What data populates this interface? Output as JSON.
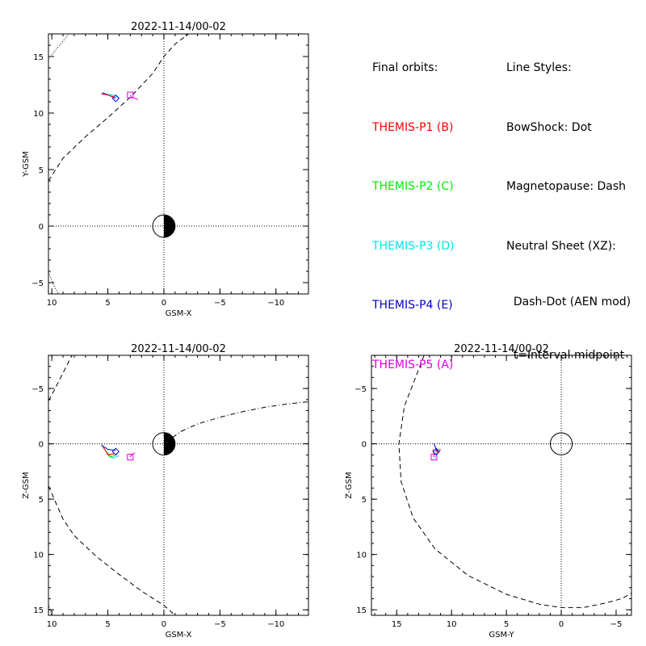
{
  "colors": {
    "P1": "#ff0000",
    "P2": "#00ee00",
    "P3": "#00e5e5",
    "P4": "#0000cc",
    "P5": "#e000e0",
    "lines": "#000000"
  },
  "legend": {
    "orbits_title": "Final orbits:",
    "orbits": [
      {
        "label": "THEMIS-P1 (B)",
        "color": "#ff0000"
      },
      {
        "label": "THEMIS-P2 (C)",
        "color": "#00ee00"
      },
      {
        "label": "THEMIS-P3 (D)",
        "color": "#00e5e5"
      },
      {
        "label": "THEMIS-P4 (E)",
        "color": "#0000cc"
      },
      {
        "label": "THEMIS-P5 (A)",
        "color": "#e000e0"
      }
    ],
    "styles_title": "Line Styles:",
    "styles": [
      "BowShock: Dot",
      "Magnetopause: Dash",
      "Neutral Sheet (XZ):"
    ],
    "styles_sub": [
      "  Dash-Dot (AEN mod)",
      "  t=interval midpoint"
    ]
  },
  "chart_data": [
    {
      "id": "xy",
      "type": "scatter",
      "title": "2022-11-14/00-02",
      "xlabel": "GSM-X",
      "ylabel": "Y-GSM",
      "xlim": [
        10.3,
        -12.9
      ],
      "ylim": [
        17.0,
        -6.0
      ],
      "xticks": [
        10,
        5,
        0,
        -5,
        -10
      ],
      "yticks": [
        -5,
        0,
        5,
        10,
        15
      ],
      "grid": false,
      "earth": {
        "radius": 1,
        "night_side": "negative-x"
      },
      "reference_lines": {
        "x0": true,
        "y0": true
      },
      "curves": [
        {
          "name": "magnetopause",
          "style": "dash",
          "points": [
            [
              10.3,
              4.0
            ],
            [
              9,
              6
            ],
            [
              7,
              7.9
            ],
            [
              5,
              9.6
            ],
            [
              3,
              11.4
            ],
            [
              1,
              13.5
            ],
            [
              0,
              15.0
            ],
            [
              -1,
              16.1
            ],
            [
              -2.2,
              17.0
            ]
          ]
        },
        {
          "name": "bowshock",
          "style": "dot",
          "points": [
            [
              10.3,
              14.8
            ],
            [
              9.3,
              16
            ],
            [
              8.5,
              17.0
            ]
          ]
        },
        {
          "name": "bowshock",
          "style": "dot",
          "points": [
            [
              10.3,
              -4.1
            ],
            [
              9.7,
              -5.5
            ],
            [
              9.4,
              -6.0
            ]
          ]
        }
      ],
      "orbits": [
        {
          "sc": "P5",
          "points": [
            [
              2.3,
              11.2
            ],
            [
              2.9,
              11.4
            ],
            [
              3.0,
              11.6
            ]
          ],
          "marker": "square",
          "marker_at": [
            3.0,
            11.6
          ]
        },
        {
          "sc": "P3",
          "points": [
            [
              4.0,
              11.4
            ],
            [
              4.6,
              11.6
            ],
            [
              5.3,
              11.7
            ]
          ]
        },
        {
          "sc": "P4",
          "points": [
            [
              4.3,
              11.3
            ],
            [
              5.0,
              11.6
            ],
            [
              5.5,
              11.8
            ]
          ],
          "marker": "diamond",
          "marker_at": [
            4.3,
            11.3
          ]
        },
        {
          "sc": "P1",
          "points": [
            [
              4.4,
              11.4
            ],
            [
              5.0,
              11.6
            ],
            [
              5.6,
              11.7
            ]
          ]
        }
      ]
    },
    {
      "id": "xz",
      "type": "scatter",
      "title": "2022-11-14/00-02",
      "xlabel": "GSM-X",
      "ylabel": "Z-GSM",
      "xlim": [
        10.3,
        -12.9
      ],
      "ylim": [
        -8.0,
        15.5
      ],
      "xticks": [
        10,
        5,
        0,
        -5,
        -10
      ],
      "yticks": [
        -5,
        0,
        5,
        10,
        15
      ],
      "grid": false,
      "earth": {
        "radius": 1,
        "night_side": "negative-x"
      },
      "reference_lines": {
        "x0": true,
        "y0": true
      },
      "curves": [
        {
          "name": "magnetopause",
          "style": "dash",
          "points": [
            [
              10.3,
              3.8
            ],
            [
              10,
              4.5
            ],
            [
              9,
              6.8
            ],
            [
              8,
              8.3
            ],
            [
              6,
              10.2
            ],
            [
              4,
              11.8
            ],
            [
              2,
              13.3
            ],
            [
              0,
              14.6
            ],
            [
              -1,
              15.5
            ]
          ]
        },
        {
          "name": "magnetopause",
          "style": "dash",
          "points": [
            [
              10.3,
              -3.9
            ],
            [
              9.8,
              -4.8
            ],
            [
              9.0,
              -6.4
            ],
            [
              8.2,
              -8.0
            ]
          ]
        },
        {
          "name": "bowshock",
          "style": "dot",
          "points": [
            [
              10.3,
              14.5
            ],
            [
              10.0,
              15.5
            ]
          ]
        },
        {
          "name": "neutral-sheet",
          "style": "dashdot",
          "points": [
            [
              0,
              0
            ],
            [
              -1.5,
              -1.1
            ],
            [
              -3,
              -1.8
            ],
            [
              -5,
              -2.4
            ],
            [
              -7,
              -2.9
            ],
            [
              -9,
              -3.3
            ],
            [
              -11,
              -3.6
            ],
            [
              -12.9,
              -3.8
            ]
          ]
        }
      ],
      "orbits": [
        {
          "sc": "P5",
          "points": [
            [
              2.6,
              0.8
            ],
            [
              3.0,
              1.1
            ],
            [
              3.0,
              1.2
            ]
          ],
          "marker": "square",
          "marker_at": [
            3.0,
            1.2
          ]
        },
        {
          "sc": "P3",
          "points": [
            [
              4.0,
              1.1
            ],
            [
              4.6,
              1.3
            ],
            [
              5.3,
              0.5
            ]
          ]
        },
        {
          "sc": "P2",
          "points": [
            [
              4.2,
              1.0
            ],
            [
              4.8,
              1.2
            ],
            [
              5.5,
              0.2
            ]
          ]
        },
        {
          "sc": "P4",
          "points": [
            [
              4.3,
              0.6
            ],
            [
              5.0,
              0.5
            ],
            [
              5.6,
              0.1
            ]
          ],
          "marker": "diamond",
          "marker_at": [
            4.3,
            0.7
          ]
        },
        {
          "sc": "P1",
          "points": [
            [
              4.4,
              0.9
            ],
            [
              5.0,
              1.0
            ],
            [
              5.4,
              0.3
            ]
          ]
        }
      ]
    },
    {
      "id": "yz",
      "type": "scatter",
      "title": "2022-11-14/00-02",
      "xlabel": "GSM-Y",
      "ylabel": "Z-GSM",
      "xlim": [
        17.3,
        -6.4
      ],
      "ylim": [
        -8.0,
        15.5
      ],
      "xticks": [
        15,
        10,
        5,
        0,
        -5
      ],
      "yticks": [
        -5,
        0,
        5,
        10,
        15
      ],
      "grid": false,
      "earth": {
        "radius": 1,
        "night_side": "none"
      },
      "reference_lines": {
        "x0": true,
        "y0": true
      },
      "curves": [
        {
          "name": "magnetopause",
          "style": "dash",
          "points": [
            [
              12.5,
              -8.0
            ],
            [
              13.2,
              -6.2
            ],
            [
              14.3,
              -3.4
            ],
            [
              14.8,
              0
            ],
            [
              14.6,
              3.4
            ],
            [
              13.5,
              6.7
            ],
            [
              11.5,
              9.5
            ],
            [
              8.5,
              11.9
            ],
            [
              5,
              13.6
            ],
            [
              2,
              14.5
            ],
            [
              0,
              14.8
            ],
            [
              -2,
              14.8
            ],
            [
              -4,
              14.4
            ],
            [
              -5.5,
              14.0
            ],
            [
              -6.4,
              13.5
            ]
          ]
        }
      ],
      "orbits": [
        {
          "sc": "P5",
          "points": [
            [
              11.7,
              0.5
            ],
            [
              11.6,
              0.9
            ],
            [
              11.6,
              1.2
            ]
          ],
          "marker": "square",
          "marker_at": [
            11.6,
            1.2
          ]
        },
        {
          "sc": "P3",
          "points": [
            [
              11.5,
              1.3
            ],
            [
              11.3,
              0.7
            ],
            [
              11.1,
              0.4
            ]
          ]
        },
        {
          "sc": "P4",
          "points": [
            [
              11.6,
              0
            ],
            [
              11.4,
              0.5
            ],
            [
              11.2,
              0.8
            ]
          ],
          "marker": "diamond",
          "marker_at": [
            11.4,
            0.7
          ]
        },
        {
          "sc": "P1",
          "points": [
            [
              11.5,
              0.6
            ],
            [
              11.2,
              0.8
            ],
            [
              11.0,
              0.5
            ]
          ]
        }
      ]
    }
  ]
}
